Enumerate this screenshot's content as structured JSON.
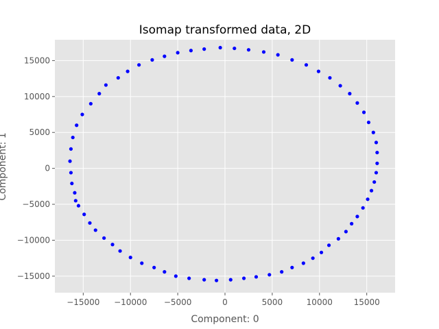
{
  "chart_data": {
    "type": "scatter",
    "title": "Isomap transformed data, 2D",
    "xlabel": "Component: 0",
    "ylabel": "Component: 1",
    "xlim": [
      -18000,
      18000
    ],
    "ylim": [
      -17300,
      17900
    ],
    "xticks": [
      -15000,
      -10000,
      -5000,
      0,
      5000,
      10000,
      15000
    ],
    "yticks": [
      -15000,
      -10000,
      -5000,
      0,
      5000,
      10000,
      15000
    ],
    "grid": true,
    "legend": "none",
    "colors": {
      "point": "#0000ff",
      "plot_background": "#e5e5e5",
      "grid": "#ffffff"
    },
    "series": [
      {
        "x": [
          -500,
          1000,
          2500,
          4100,
          5600,
          7100,
          8600,
          9900,
          11100,
          12200,
          13200,
          14000,
          14700,
          15200,
          15700,
          16000,
          16100,
          16100,
          16000,
          15800,
          15500,
          15100,
          14600,
          14000,
          13400,
          12800,
          12000,
          11000,
          10200,
          9300,
          8300,
          7100,
          6000,
          4700,
          3300,
          2000,
          600,
          -900,
          -2200,
          -3800,
          -5200,
          -6400,
          -7500,
          -8800,
          -10000,
          -11100,
          -11900,
          -12800,
          -13700,
          -14300,
          -14900,
          -15500,
          -15800,
          -15900,
          -16200,
          -16300,
          -16400,
          -16300,
          -16100,
          -15700,
          -15100,
          -14200,
          -13300,
          -12600,
          -11300,
          -10300,
          -9100,
          -7700,
          -6400,
          -5000,
          -3600,
          -2200
        ],
        "y": [
          16800,
          16700,
          16500,
          16200,
          15800,
          15100,
          14400,
          13500,
          12600,
          11500,
          10400,
          9100,
          7800,
          6400,
          5000,
          3600,
          2200,
          700,
          -600,
          -1900,
          -3100,
          -4300,
          -5500,
          -6700,
          -7700,
          -8800,
          -9800,
          -10700,
          -11700,
          -12500,
          -13200,
          -13800,
          -14400,
          -14800,
          -15100,
          -15300,
          -15500,
          -15600,
          -15500,
          -15300,
          -15000,
          -14400,
          -13800,
          -13200,
          -12400,
          -11500,
          -10600,
          -9700,
          -8600,
          -7600,
          -6400,
          -5200,
          -4500,
          -3400,
          -2100,
          -600,
          1000,
          2700,
          4300,
          6000,
          7500,
          9000,
          10400,
          11600,
          12600,
          13500,
          14400,
          15100,
          15600,
          16100,
          16400,
          16600
        ]
      }
    ]
  }
}
